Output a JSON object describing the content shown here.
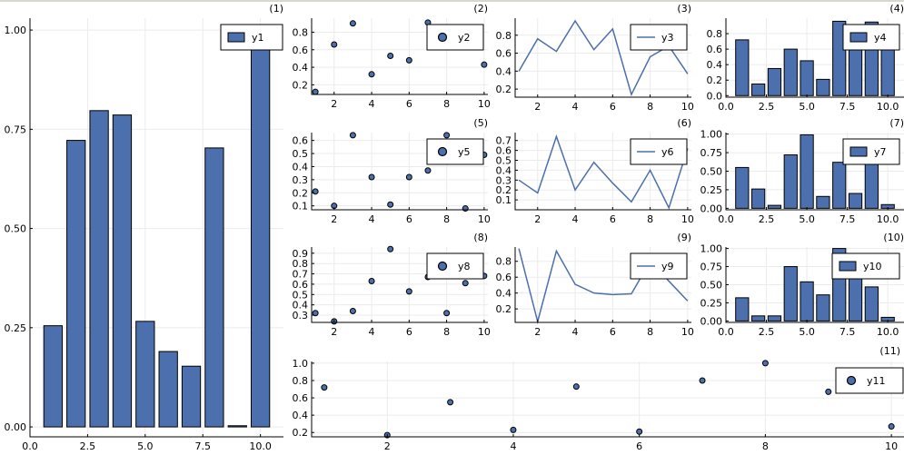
{
  "colors": {
    "series": "#4c6fad",
    "grid": "#ebebeb",
    "axis": "#000000",
    "legend_frame": "#000000"
  },
  "chart_data": [
    {
      "type": "bar",
      "panel_label": "(1)",
      "legend": "y1",
      "legend_position": "top-right",
      "x": [
        1,
        2,
        3,
        4,
        5,
        6,
        7,
        8,
        9,
        10
      ],
      "values": [
        0.255,
        0.722,
        0.797,
        0.786,
        0.266,
        0.19,
        0.153,
        0.703,
        0.003,
        0.99
      ],
      "xlim": [
        0,
        11
      ],
      "ylim": [
        -0.025,
        1.03
      ],
      "xticks": [
        0,
        2.5,
        5,
        7.5,
        10
      ],
      "xtick_labels": [
        "0.0",
        "2.5",
        "5.0",
        "7.5",
        "10.0"
      ],
      "yticks": [
        0,
        0.25,
        0.5,
        0.75,
        1
      ],
      "ytick_labels": [
        "0.00",
        "0.25",
        "0.50",
        "0.75",
        "1.00"
      ],
      "grid": true
    },
    {
      "type": "scatter",
      "panel_label": "(2)",
      "legend": "y2",
      "legend_position": "top-right",
      "x": [
        1,
        2,
        3,
        4,
        5,
        6,
        7,
        8,
        9,
        10
      ],
      "values": [
        0.12,
        0.66,
        0.9,
        0.32,
        0.53,
        0.48,
        0.91,
        0.73,
        0.77,
        0.43
      ],
      "xlim": [
        0.8,
        10.2
      ],
      "ylim": [
        0.09,
        0.96
      ],
      "xticks": [
        2,
        4,
        6,
        8,
        10
      ],
      "xtick_labels": [
        "2",
        "4",
        "6",
        "8",
        "10"
      ],
      "yticks": [
        0.2,
        0.4,
        0.6,
        0.8
      ],
      "ytick_labels": [
        "0.2",
        "0.4",
        "0.6",
        "0.8"
      ],
      "grid": true
    },
    {
      "type": "line",
      "panel_label": "(3)",
      "legend": "y3",
      "legend_position": "top-right",
      "x": [
        1,
        2,
        3,
        4,
        5,
        6,
        7,
        8,
        9,
        10
      ],
      "values": [
        0.4,
        0.76,
        0.62,
        0.96,
        0.64,
        0.87,
        0.14,
        0.56,
        0.68,
        0.37
      ],
      "xlim": [
        0.8,
        10.2
      ],
      "ylim": [
        0.11,
        0.99
      ],
      "xticks": [
        2,
        4,
        6,
        8,
        10
      ],
      "xtick_labels": [
        "2",
        "4",
        "6",
        "8",
        "10"
      ],
      "yticks": [
        0.2,
        0.4,
        0.6,
        0.8
      ],
      "ytick_labels": [
        "0.2",
        "0.4",
        "0.6",
        "0.8"
      ],
      "grid": true
    },
    {
      "type": "bar",
      "panel_label": "(4)",
      "legend": "y4",
      "legend_position": "top-right",
      "x": [
        1,
        2,
        3,
        4,
        5,
        6,
        7,
        8,
        9,
        10
      ],
      "values": [
        0.72,
        0.15,
        0.35,
        0.6,
        0.45,
        0.21,
        0.96,
        0.7,
        0.95,
        0.7
      ],
      "xlim": [
        0,
        11
      ],
      "ylim": [
        -0.02,
        1.0
      ],
      "xticks": [
        0,
        2.5,
        5,
        7.5,
        10
      ],
      "xtick_labels": [
        "0.0",
        "2.5",
        "5.0",
        "7.5",
        "10.0"
      ],
      "yticks": [
        0,
        0.2,
        0.4,
        0.6,
        0.8
      ],
      "ytick_labels": [
        "0.0",
        "0.2",
        "0.4",
        "0.6",
        "0.8"
      ],
      "grid": true
    },
    {
      "type": "scatter",
      "panel_label": "(5)",
      "legend": "y5",
      "legend_position": "top-right",
      "x": [
        1,
        2,
        3,
        4,
        5,
        6,
        7,
        8,
        9,
        10
      ],
      "values": [
        0.21,
        0.1,
        0.64,
        0.32,
        0.11,
        0.32,
        0.37,
        0.64,
        0.08,
        0.49
      ],
      "xlim": [
        0.8,
        10.2
      ],
      "ylim": [
        0.07,
        0.66
      ],
      "xticks": [
        2,
        4,
        6,
        8,
        10
      ],
      "xtick_labels": [
        "2",
        "4",
        "6",
        "8",
        "10"
      ],
      "yticks": [
        0.1,
        0.2,
        0.3,
        0.4,
        0.5,
        0.6
      ],
      "ytick_labels": [
        "0.1",
        "0.2",
        "0.3",
        "0.4",
        "0.5",
        "0.6"
      ],
      "grid": true
    },
    {
      "type": "line",
      "panel_label": "(6)",
      "legend": "y6",
      "legend_position": "top-right",
      "x": [
        1,
        2,
        3,
        4,
        5,
        6,
        7,
        8,
        9,
        10
      ],
      "values": [
        0.3,
        0.17,
        0.74,
        0.2,
        0.48,
        0.27,
        0.08,
        0.4,
        0.02,
        0.62
      ],
      "xlim": [
        0.8,
        10.2
      ],
      "ylim": [
        0.0,
        0.78
      ],
      "xticks": [
        2,
        4,
        6,
        8,
        10
      ],
      "xtick_labels": [
        "2",
        "4",
        "6",
        "8",
        "10"
      ],
      "yticks": [
        0.1,
        0.2,
        0.3,
        0.4,
        0.5,
        0.6,
        0.7
      ],
      "ytick_labels": [
        "0.1",
        "0.2",
        "0.3",
        "0.4",
        "0.5",
        "0.6",
        "0.7"
      ],
      "grid": true
    },
    {
      "type": "bar",
      "panel_label": "(7)",
      "legend": "y7",
      "legend_position": "top-right",
      "x": [
        1,
        2,
        3,
        4,
        5,
        6,
        7,
        8,
        9,
        10
      ],
      "values": [
        0.55,
        0.26,
        0.04,
        0.72,
        0.99,
        0.16,
        0.62,
        0.2,
        0.7,
        0.05
      ],
      "xlim": [
        0,
        11
      ],
      "ylim": [
        -0.02,
        1.02
      ],
      "xticks": [
        0,
        2.5,
        5,
        7.5,
        10
      ],
      "xtick_labels": [
        "0.0",
        "2.5",
        "5.0",
        "7.5",
        "10.0"
      ],
      "yticks": [
        0,
        0.25,
        0.5,
        0.75,
        1
      ],
      "ytick_labels": [
        "0.00",
        "0.25",
        "0.50",
        "0.75",
        "1.00"
      ],
      "grid": true
    },
    {
      "type": "scatter",
      "panel_label": "(8)",
      "legend": "y8",
      "legend_position": "top-right",
      "x": [
        1,
        2,
        3,
        4,
        5,
        6,
        7,
        8,
        9,
        10
      ],
      "values": [
        0.32,
        0.24,
        0.34,
        0.63,
        0.94,
        0.53,
        0.67,
        0.32,
        0.61,
        0.68
      ],
      "xlim": [
        0.8,
        10.2
      ],
      "ylim": [
        0.23,
        0.96
      ],
      "xticks": [
        2,
        4,
        6,
        8,
        10
      ],
      "xtick_labels": [
        "2",
        "4",
        "6",
        "8",
        "10"
      ],
      "yticks": [
        0.3,
        0.4,
        0.5,
        0.6,
        0.7,
        0.8,
        0.9
      ],
      "ytick_labels": [
        "0.3",
        "0.4",
        "0.5",
        "0.6",
        "0.7",
        "0.8",
        "0.9"
      ],
      "grid": true
    },
    {
      "type": "line",
      "panel_label": "(9)",
      "legend": "y9",
      "legend_position": "top-right",
      "x": [
        1,
        2,
        3,
        4,
        5,
        6,
        7,
        8,
        9,
        10
      ],
      "values": [
        0.96,
        0.04,
        0.93,
        0.51,
        0.4,
        0.38,
        0.39,
        0.8,
        0.55,
        0.3
      ],
      "xlim": [
        0.8,
        10.2
      ],
      "ylim": [
        0.03,
        0.98
      ],
      "xticks": [
        2,
        4,
        6,
        8,
        10
      ],
      "xtick_labels": [
        "2",
        "4",
        "6",
        "8",
        "10"
      ],
      "yticks": [
        0.2,
        0.4,
        0.6,
        0.8
      ],
      "ytick_labels": [
        "0.2",
        "0.4",
        "0.6",
        "0.8"
      ],
      "grid": true
    },
    {
      "type": "bar",
      "panel_label": "(10)",
      "legend": "y10",
      "legend_position": "top-right",
      "x": [
        1,
        2,
        3,
        4,
        5,
        6,
        7,
        8,
        9,
        10
      ],
      "values": [
        0.32,
        0.07,
        0.07,
        0.75,
        0.54,
        0.36,
        1.0,
        0.8,
        0.47,
        0.05
      ],
      "xlim": [
        0,
        11
      ],
      "ylim": [
        -0.02,
        1.02
      ],
      "xticks": [
        0,
        2.5,
        5,
        7.5,
        10
      ],
      "xtick_labels": [
        "0.0",
        "2.5",
        "5.0",
        "7.5",
        "10.0"
      ],
      "yticks": [
        0,
        0.25,
        0.5,
        0.75,
        1
      ],
      "ytick_labels": [
        "0.00",
        "0.25",
        "0.50",
        "0.75",
        "1.00"
      ],
      "grid": true
    },
    {
      "type": "scatter",
      "panel_label": "(11)",
      "legend": "y11",
      "legend_position": "top-right",
      "x": [
        1,
        2,
        3,
        4,
        5,
        6,
        7,
        8,
        9,
        10
      ],
      "values": [
        0.72,
        0.17,
        0.55,
        0.23,
        0.73,
        0.21,
        0.8,
        1.0,
        0.67,
        0.27
      ],
      "xlim": [
        0.8,
        10.2
      ],
      "ylim": [
        0.15,
        1.02
      ],
      "xticks": [
        2,
        4,
        6,
        8,
        10
      ],
      "xtick_labels": [
        "2",
        "4",
        "6",
        "8",
        "10"
      ],
      "yticks": [
        0.2,
        0.4,
        0.6,
        0.8,
        1.0
      ],
      "ytick_labels": [
        "0.2",
        "0.4",
        "0.6",
        "0.8",
        "1.0"
      ],
      "grid": true
    }
  ]
}
